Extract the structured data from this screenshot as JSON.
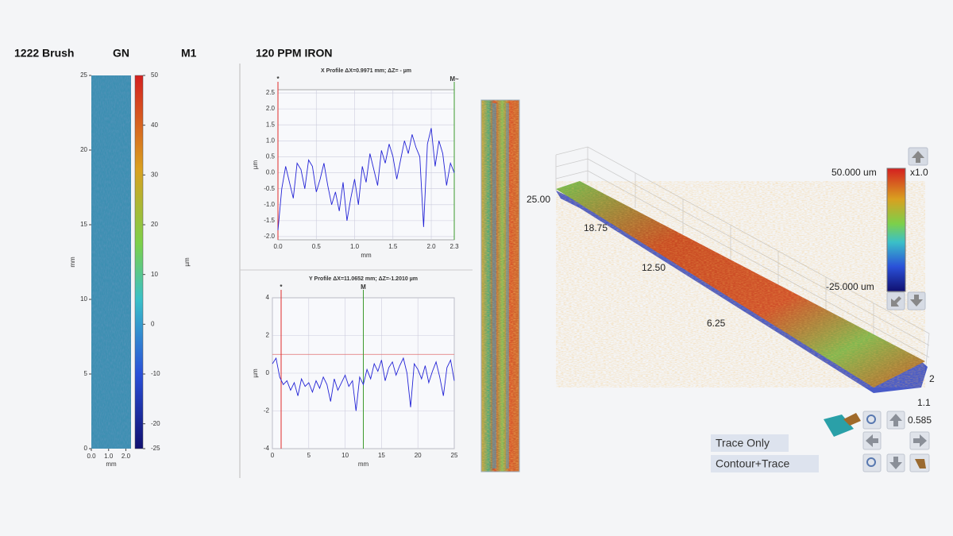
{
  "header": {
    "sample": "1222 Brush",
    "code": "GN",
    "mark": "M1",
    "solution": "120 PPM IRON"
  },
  "height_map": {
    "ylim": [
      0,
      25
    ],
    "yticks": [
      0,
      5,
      10,
      15,
      20,
      25
    ],
    "xlim": [
      0,
      2.3
    ],
    "xticks": [
      {
        "value": 0,
        "label": "0.0"
      },
      {
        "value": 1,
        "label": "1.0"
      },
      {
        "value": 2,
        "label": "2.0"
      }
    ],
    "xlabel": "mm",
    "ylabel": "mm",
    "colorbar": {
      "lim": [
        -25,
        50
      ],
      "ticks": [
        50,
        40,
        30,
        20,
        10,
        0,
        -10,
        -20,
        -25
      ],
      "label": "µm"
    }
  },
  "x_profile": {
    "type": "line",
    "title": "X Profile  ΔX=0.9971 mm; ΔZ= -  µm",
    "color": "#2323d6",
    "xlim": [
      0,
      2.3
    ],
    "ylim": [
      -2.1,
      2.6
    ],
    "xticks": [
      {
        "value": 0,
        "label": "0.0"
      },
      0.5,
      {
        "value": 1,
        "label": "1.0"
      },
      1.5,
      {
        "value": 2,
        "label": "2.0"
      },
      2.3
    ],
    "yticks": [
      {
        "value": -2,
        "label": "-2.0"
      },
      -1.5,
      {
        "value": -1,
        "label": "-1.0"
      },
      -0.5,
      {
        "value": 0,
        "label": "0.0"
      },
      0.5,
      {
        "value": 1,
        "label": "1.0"
      },
      1.5,
      {
        "value": 2,
        "label": "2.0"
      },
      2.5
    ],
    "xlabel": "mm",
    "ylabel": "µm",
    "cursors": [
      {
        "label": "*",
        "x": 0,
        "color": "#e02a2a"
      },
      {
        "label": "M~",
        "x": 2.3,
        "color": "#3c9a2e"
      }
    ],
    "x": [
      0,
      0.05,
      0.1,
      0.15,
      0.2,
      0.25,
      0.3,
      0.35,
      0.4,
      0.45,
      0.5,
      0.55,
      0.6,
      0.65,
      0.7,
      0.75,
      0.8,
      0.85,
      0.9,
      0.95,
      1,
      1.05,
      1.1,
      1.15,
      1.2,
      1.25,
      1.3,
      1.35,
      1.4,
      1.45,
      1.5,
      1.55,
      1.6,
      1.65,
      1.7,
      1.75,
      1.8,
      1.85,
      1.9,
      1.95,
      2,
      2.05,
      2.1,
      2.15,
      2.2,
      2.25,
      2.3
    ],
    "values": [
      -1.8,
      -0.5,
      0.2,
      -0.3,
      -0.8,
      0.3,
      0.1,
      -0.5,
      0.4,
      0.2,
      -0.6,
      -0.2,
      0.3,
      -0.4,
      -1.0,
      -0.6,
      -1.2,
      -0.3,
      -1.5,
      -0.8,
      -0.2,
      -1.0,
      0.2,
      -0.3,
      0.6,
      0.1,
      -0.4,
      0.7,
      0.3,
      0.9,
      0.5,
      -0.2,
      0.4,
      1.0,
      0.6,
      1.2,
      0.8,
      0.5,
      -1.7,
      0.9,
      1.4,
      0.2,
      1.0,
      0.6,
      -0.4,
      0.3,
      0.0
    ]
  },
  "y_profile": {
    "type": "line",
    "title": "Y Profile  ΔX=11.0652 mm; ΔZ=-1.2010 µm",
    "color": "#2323d6",
    "xlim": [
      0,
      25
    ],
    "ylim": [
      -4,
      4
    ],
    "xticks": [
      0,
      5,
      10,
      15,
      20,
      25
    ],
    "yticks": [
      -4,
      -2,
      0,
      2,
      4
    ],
    "xlabel": "mm",
    "ylabel": "µm",
    "ref_y": 1,
    "cursors": [
      {
        "label": "*",
        "x": 1.2,
        "color": "#e02a2a"
      },
      {
        "label": "M",
        "x": 12.5,
        "color": "#3c9a2e"
      }
    ],
    "x": [
      0,
      0.5,
      1,
      1.5,
      2,
      2.5,
      3,
      3.5,
      4,
      4.5,
      5,
      5.5,
      6,
      6.5,
      7,
      7.5,
      8,
      8.5,
      9,
      9.5,
      10,
      10.5,
      11,
      11.5,
      12,
      12.5,
      13,
      13.5,
      14,
      14.5,
      15,
      15.5,
      16,
      16.5,
      17,
      17.5,
      18,
      18.5,
      19,
      19.5,
      20,
      20.5,
      21,
      21.5,
      22,
      22.5,
      23,
      23.5,
      24,
      24.5,
      25
    ],
    "values": [
      0.5,
      0.8,
      -0.2,
      -0.6,
      -0.4,
      -0.9,
      -0.5,
      -1.2,
      -0.3,
      -0.7,
      -0.5,
      -1.0,
      -0.4,
      -0.8,
      -0.2,
      -0.6,
      -1.5,
      -0.3,
      -0.9,
      -0.5,
      -0.1,
      -0.7,
      -0.4,
      -2.0,
      -0.2,
      -0.6,
      0.2,
      -0.3,
      0.5,
      0.1,
      0.7,
      -0.4,
      0.3,
      0.6,
      -0.1,
      0.4,
      0.8,
      0.0,
      -1.8,
      0.5,
      0.2,
      -0.3,
      0.4,
      -0.5,
      0.1,
      0.6,
      -0.2,
      -1.2,
      0.3,
      0.7,
      -0.4
    ]
  },
  "view_3d": {
    "axis_labels": [
      "25.00",
      "18.75",
      "12.50",
      "6.25",
      "2",
      "1.1",
      "0.585"
    ],
    "scale_max": "50.000 um",
    "scale_min": "-25.000 um",
    "zoom": "x1.0"
  },
  "controls": {
    "trace_only": "Trace Only",
    "contour_trace": "Contour+Trace"
  }
}
